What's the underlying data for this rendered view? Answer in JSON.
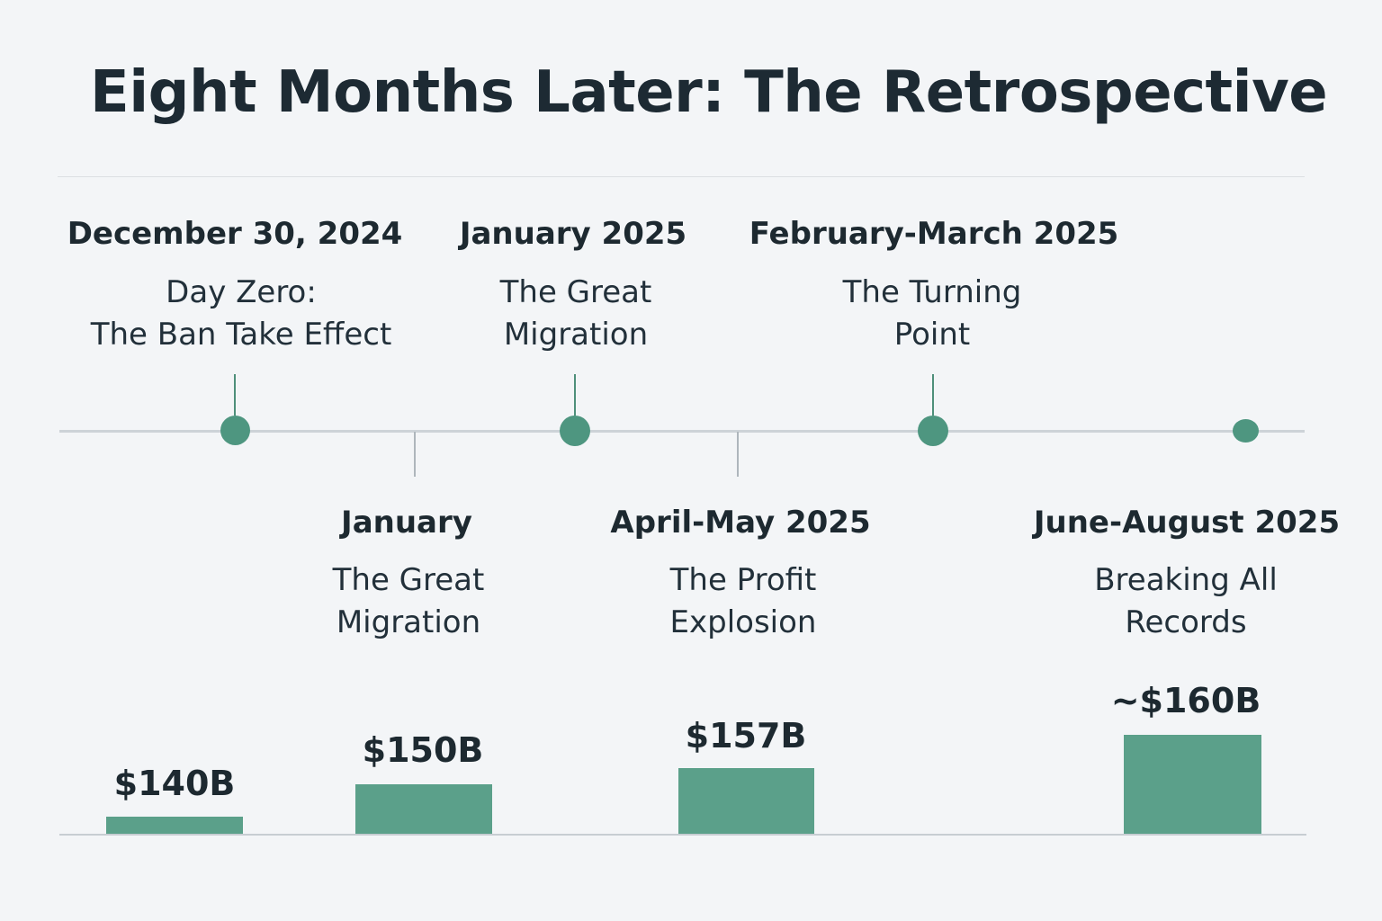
{
  "title": "Eight Months Later: The Retrospective",
  "events_above": [
    {
      "date": "December 30, 2024",
      "desc": [
        "Day Zero:",
        "The Ban Take Effect"
      ]
    },
    {
      "date": "January 2025",
      "desc": [
        "The Great",
        "Migration"
      ]
    },
    {
      "date": "February-March 2025",
      "desc": [
        "The Turning",
        "Point"
      ]
    }
  ],
  "events_below": [
    {
      "date": "January",
      "desc": [
        "The Great",
        "Migration"
      ]
    },
    {
      "date": "April-May 2025",
      "desc": [
        "The Profit",
        "Explosion"
      ]
    },
    {
      "date": "June-August 2025",
      "desc": [
        "Breaking All",
        "Records"
      ]
    }
  ],
  "chart_data": {
    "type": "bar",
    "labels": [
      "$140B",
      "$150B",
      "$157B",
      "~$160B"
    ],
    "values": [
      140,
      150,
      157,
      160
    ],
    "bar_color": "#5ba08a"
  },
  "colors": {
    "accent": "#4e9680",
    "axis": "#cdd3d8",
    "background": "#f3f5f7"
  }
}
